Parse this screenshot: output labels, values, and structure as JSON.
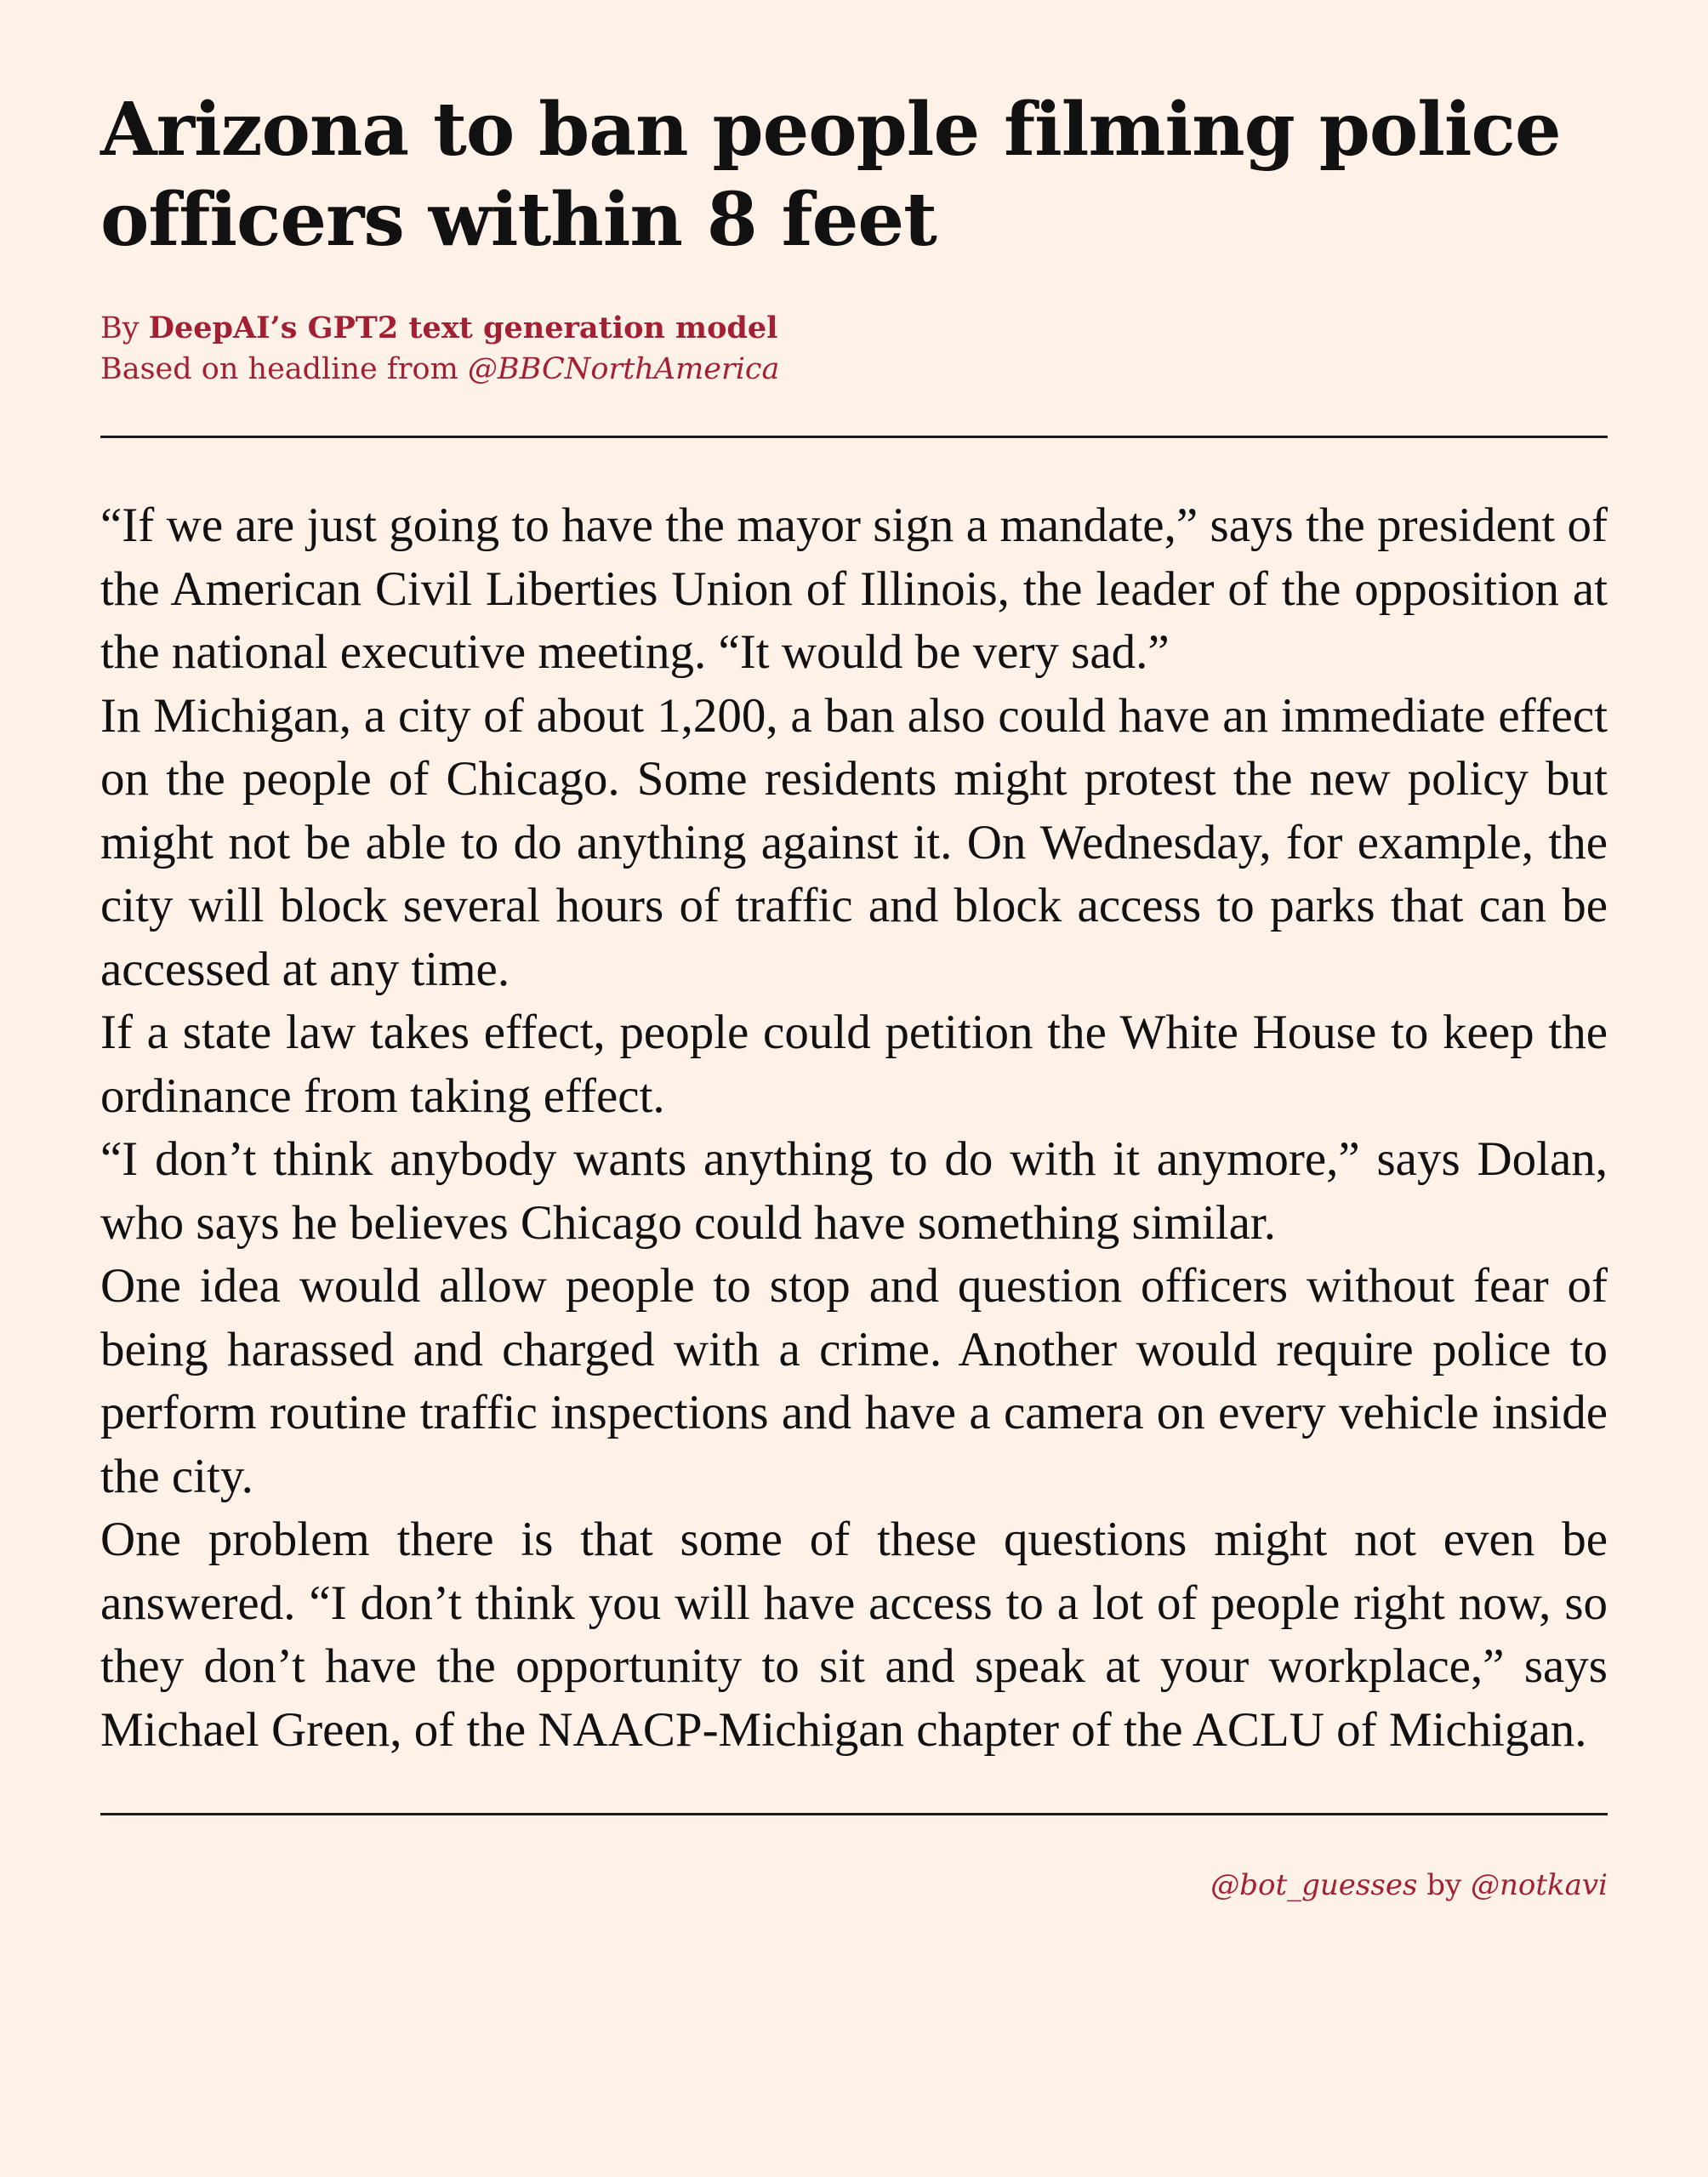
{
  "article": {
    "headline": "Arizona to ban people filming police officers within 8 feet",
    "byline": {
      "prefix": "By ",
      "author": "DeepAI’s GPT2 text generation model",
      "source_prefix": "Based on headline from ",
      "source_handle": "@BBCNorthAmerica"
    },
    "paragraphs": [
      "“If we are just going to have the mayor sign a mandate,” says the president of the American Civil Liberties Union of Illinois, the leader of the opposition at the national executive meeting.  “It would be very sad.”",
      "In Michigan, a city of about 1,200, a ban also could have an immediate effect on the people of Chicago. Some residents might protest the new policy but might not be able to do anything against it. On Wednesday, for example, the city will block several hours of traffic and block access to parks that can be accessed at any time.",
      "If a state law takes effect, people could petition the White House to keep the ordinance from taking effect.",
      "“I don’t think anybody wants anything to do with it anymore,” says Dolan, who says he believes Chicago could have something similar.",
      "One idea would allow people to stop and question officers without fear of being harassed and charged with a crime. Another would require police to perform routine traffic inspections and have a camera on every vehicle inside the city.",
      "One problem there is that some of these questions might not even be answered.  “I don’t think you will have access to a lot of people right now, so they don’t have the opportunity to sit and speak at your workplace,” says Michael Green, of the NAACP-Michigan chapter of the ACLU of Michigan."
    ]
  },
  "footer": {
    "bot_handle": "@bot_guesses",
    "by": " by ",
    "author_handle": "@notkavi"
  },
  "colors": {
    "background": "#fdf1e8",
    "text": "#111111",
    "accent": "#a31f34"
  }
}
